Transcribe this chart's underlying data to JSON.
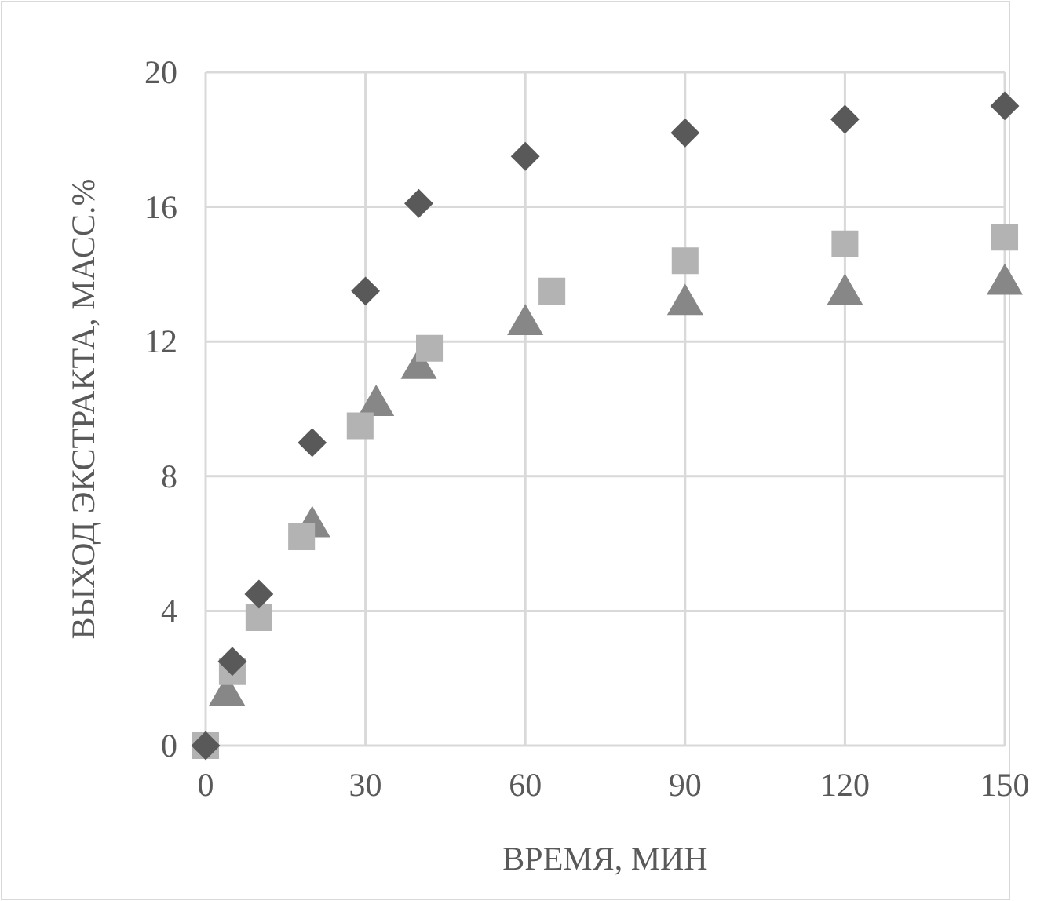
{
  "chart_data": {
    "type": "scatter",
    "xlabel": "ВРЕМЯ, МИН",
    "ylabel": "ВЫХОД ЭКСТРАКТА, МАСС.%",
    "xlim": [
      0,
      150
    ],
    "xticks": [
      0,
      30,
      60,
      90,
      120,
      150
    ],
    "ylim": [
      0,
      20
    ],
    "yticks": [
      0,
      4,
      8,
      12,
      16,
      20
    ],
    "grid": true,
    "series": [
      {
        "color": "#878787",
        "marker": "triangle",
        "x": [
          4,
          20,
          32,
          40,
          60,
          90,
          120,
          150
        ],
        "values": [
          1.5,
          6.5,
          10.1,
          11.2,
          12.5,
          13.1,
          13.4,
          13.7
        ]
      },
      {
        "color": "#b3b3b3",
        "marker": "square",
        "x": [
          0,
          5,
          10,
          18,
          29,
          42,
          65,
          90,
          120,
          150
        ],
        "values": [
          0,
          2.2,
          3.8,
          6.2,
          9.5,
          11.8,
          13.5,
          14.4,
          14.9,
          15.1
        ]
      },
      {
        "color": "#595959",
        "marker": "diamond",
        "x": [
          0,
          5,
          10,
          20,
          30,
          40,
          60,
          90,
          120,
          150
        ],
        "values": [
          0,
          2.5,
          4.5,
          9,
          13.5,
          16.1,
          17.5,
          18.2,
          18.6,
          19
        ]
      }
    ]
  }
}
